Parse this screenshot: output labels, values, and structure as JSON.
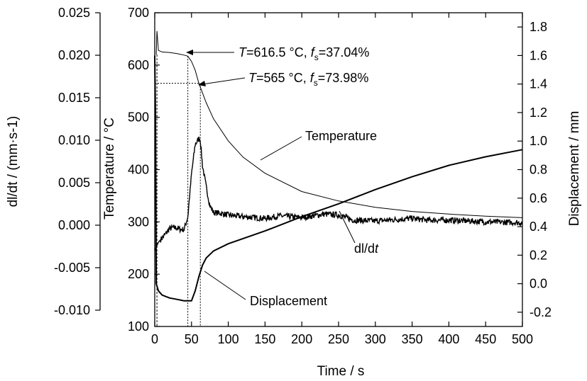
{
  "chart_data": {
    "type": "line",
    "x_axis": {
      "label": "Time / s",
      "range": [
        0,
        500
      ],
      "ticks": [
        0,
        50,
        100,
        150,
        200,
        250,
        300,
        350,
        400,
        450,
        500
      ]
    },
    "y_axes": {
      "temperature": {
        "label": "Temperature / °C",
        "range": [
          100,
          700
        ],
        "ticks": [
          100,
          200,
          300,
          400,
          500,
          600,
          700
        ]
      },
      "dldt": {
        "label": "dl/dt / (mm·s-1)",
        "range": [
          -0.0125,
          0.025
        ],
        "ticks": [
          -0.01,
          -0.005,
          0.0,
          0.005,
          0.01,
          0.015,
          0.02,
          0.025
        ],
        "tick_labels": [
          "-0.010",
          "-0.005",
          "0.000",
          "0.005",
          "0.010",
          "0.015",
          "0.020",
          "0.025"
        ]
      },
      "displacement": {
        "label": "Displacement / mm",
        "range": [
          -0.3,
          1.9
        ],
        "ticks": [
          -0.2,
          0.0,
          0.2,
          0.4,
          0.6,
          0.8,
          1.0,
          1.2,
          1.4,
          1.6,
          1.8
        ],
        "tick_labels": [
          "-0.2",
          "0.0",
          "0.2",
          "0.4",
          "0.6",
          "0.8",
          "1.0",
          "1.2",
          "1.4",
          "1.6",
          "1.8"
        ]
      }
    },
    "series": [
      {
        "axis": "temperature",
        "x": [
          2,
          3,
          5,
          10,
          20,
          30,
          40,
          45,
          50,
          55,
          60,
          70,
          80,
          100,
          120,
          150,
          200,
          250,
          300,
          350,
          400,
          450,
          500
        ],
        "y": [
          620,
          665,
          628,
          625,
          624,
          622,
          619,
          617,
          607,
          590,
          565,
          528,
          497,
          455,
          424,
          393,
          358,
          340,
          328,
          320,
          315,
          311,
          308
        ]
      },
      {
        "axis": "displacement",
        "x": [
          0,
          1,
          2,
          5,
          10,
          20,
          30,
          40,
          50,
          55,
          60,
          65,
          70,
          80,
          100,
          150,
          200,
          250,
          300,
          350,
          400,
          450,
          500
        ],
        "y": [
          1.6,
          1.2,
          0.0,
          -0.05,
          -0.08,
          -0.1,
          -0.11,
          -0.12,
          -0.12,
          -0.05,
          0.05,
          0.13,
          0.18,
          0.23,
          0.28,
          0.37,
          0.47,
          0.56,
          0.66,
          0.75,
          0.83,
          0.89,
          0.94
        ]
      },
      {
        "axis": "dldt",
        "x": [
          0,
          5,
          10,
          15,
          20,
          25,
          30,
          35,
          40,
          45,
          50,
          55,
          60,
          62,
          65,
          70,
          75,
          80,
          90,
          100,
          120,
          150,
          170,
          200,
          230,
          250,
          270,
          300,
          350,
          370,
          400,
          450,
          500
        ],
        "y": [
          -0.003,
          -0.002,
          -0.0015,
          -0.001,
          -0.0004,
          -0.0003,
          -0.0003,
          -0.0005,
          -0.0005,
          0.001,
          0.006,
          0.0095,
          0.0102,
          0.01,
          0.007,
          0.0045,
          0.0023,
          0.0015,
          0.0014,
          0.0012,
          0.001,
          0.0008,
          0.0011,
          0.0009,
          0.0013,
          0.0012,
          0.0006,
          0.0005,
          0.0008,
          0.0006,
          0.0006,
          0.0004,
          0.0003
        ],
        "noise": 0.00035
      }
    ],
    "annotations": [
      {
        "id": "t1",
        "text_var": "T",
        "text_main": "=616.5 °C, ",
        "text_var2": "f",
        "text_sub": "s",
        "text_end": "=37.04%",
        "x": 45,
        "temperature": 617
      },
      {
        "id": "t2",
        "text_var": "T",
        "text_main": "=565 °C, ",
        "text_var2": "f",
        "text_sub": "s",
        "text_end": "=73.98%",
        "x": 62,
        "temperature": 565
      }
    ],
    "series_labels": {
      "temperature": "Temperature",
      "displacement": "Displacement",
      "dldt_pre": "dl/d",
      "dldt_var": "t"
    }
  }
}
